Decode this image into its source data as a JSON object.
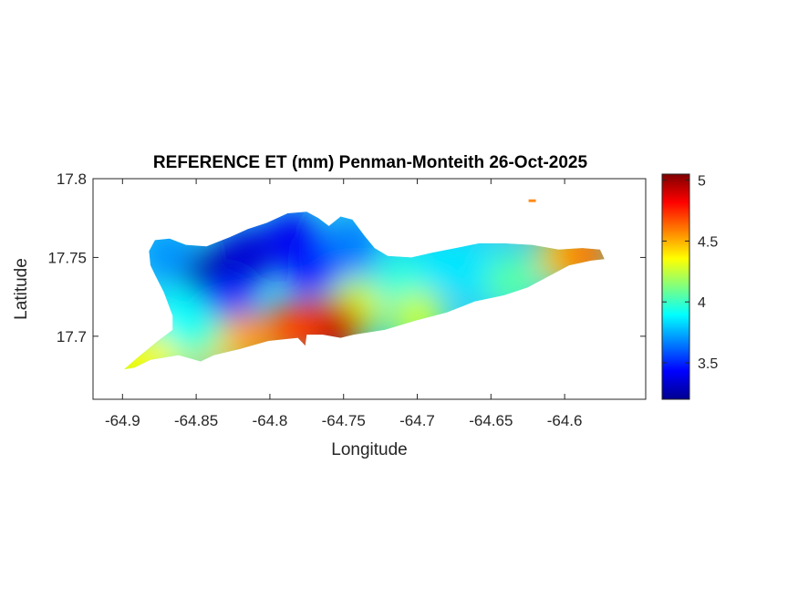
{
  "chart_data": {
    "type": "heatmap",
    "title": "REFERENCE ET (mm) Penman-Monteith 26-Oct-2025",
    "xlabel": "Longitude",
    "ylabel": "Latitude",
    "xlim": [
      -64.92,
      -64.545
    ],
    "ylim": [
      17.66,
      17.8
    ],
    "x_ticks": [
      -64.9,
      -64.85,
      -64.8,
      -64.75,
      -64.7,
      -64.65,
      -64.6
    ],
    "x_tick_labels": [
      "-64.9",
      "-64.85",
      "-64.8",
      "-64.75",
      "-64.7",
      "-64.65",
      "-64.6"
    ],
    "y_ticks": [
      17.7,
      17.75,
      17.8
    ],
    "y_tick_labels": [
      "17.7",
      "17.75",
      "17.8"
    ],
    "grid": false,
    "colorbar": {
      "colormap": "jet",
      "clim": [
        3.2,
        5.05
      ],
      "ticks": [
        3.5,
        4,
        4.5,
        5
      ],
      "tick_labels": [
        "3.5",
        "4",
        "4.5",
        "5"
      ]
    },
    "region_outline": [
      [
        -64.899,
        17.679
      ],
      [
        -64.889,
        17.687
      ],
      [
        -64.876,
        17.697
      ],
      [
        -64.866,
        17.704
      ],
      [
        -64.866,
        17.713
      ],
      [
        -64.872,
        17.728
      ],
      [
        -64.878,
        17.739
      ],
      [
        -64.881,
        17.745
      ],
      [
        -64.882,
        17.754
      ],
      [
        -64.878,
        17.761
      ],
      [
        -64.868,
        17.762
      ],
      [
        -64.857,
        17.758
      ],
      [
        -64.843,
        17.757
      ],
      [
        -64.827,
        17.763
      ],
      [
        -64.815,
        17.768
      ],
      [
        -64.802,
        17.772
      ],
      [
        -64.788,
        17.778
      ],
      [
        -64.775,
        17.779
      ],
      [
        -64.767,
        17.775
      ],
      [
        -64.76,
        17.77
      ],
      [
        -64.752,
        17.776
      ],
      [
        -64.744,
        17.774
      ],
      [
        -64.736,
        17.764
      ],
      [
        -64.729,
        17.756
      ],
      [
        -64.72,
        17.751
      ],
      [
        -64.704,
        17.75
      ],
      [
        -64.69,
        17.753
      ],
      [
        -64.674,
        17.756
      ],
      [
        -64.658,
        17.759
      ],
      [
        -64.641,
        17.759
      ],
      [
        -64.622,
        17.758
      ],
      [
        -64.604,
        17.755
      ],
      [
        -64.588,
        17.756
      ],
      [
        -64.576,
        17.755
      ],
      [
        -64.573,
        17.749
      ],
      [
        -64.582,
        17.748
      ],
      [
        -64.597,
        17.745
      ],
      [
        -64.611,
        17.738
      ],
      [
        -64.625,
        17.731
      ],
      [
        -64.641,
        17.726
      ],
      [
        -64.661,
        17.722
      ],
      [
        -64.68,
        17.715
      ],
      [
        -64.701,
        17.71
      ],
      [
        -64.722,
        17.704
      ],
      [
        -64.743,
        17.701
      ],
      [
        -64.752,
        17.699
      ],
      [
        -64.764,
        17.701
      ],
      [
        -64.775,
        17.701
      ],
      [
        -64.776,
        17.694
      ],
      [
        -64.781,
        17.699
      ],
      [
        -64.801,
        17.697
      ],
      [
        -64.82,
        17.692
      ],
      [
        -64.838,
        17.688
      ],
      [
        -64.847,
        17.684
      ],
      [
        -64.862,
        17.688
      ],
      [
        -64.881,
        17.685
      ],
      [
        -64.892,
        17.68
      ]
    ],
    "islets": [
      [
        -64.622,
        17.786
      ]
    ],
    "value_field": [
      {
        "lon": -64.84,
        "lat": 17.74,
        "et": 3.25
      },
      {
        "lon": -64.815,
        "lat": 17.752,
        "et": 3.35
      },
      {
        "lon": -64.785,
        "lat": 17.762,
        "et": 3.4
      },
      {
        "lon": -64.77,
        "lat": 17.745,
        "et": 3.45
      },
      {
        "lon": -64.83,
        "lat": 17.722,
        "et": 3.5
      },
      {
        "lon": -64.745,
        "lat": 17.758,
        "et": 3.65
      },
      {
        "lon": -64.87,
        "lat": 17.752,
        "et": 3.7
      },
      {
        "lon": -64.71,
        "lat": 17.735,
        "et": 3.95
      },
      {
        "lon": -64.68,
        "lat": 17.745,
        "et": 3.85
      },
      {
        "lon": -64.655,
        "lat": 17.74,
        "et": 3.85
      },
      {
        "lon": -64.635,
        "lat": 17.735,
        "et": 4.05
      },
      {
        "lon": -64.6,
        "lat": 17.75,
        "et": 4.45
      },
      {
        "lon": -64.585,
        "lat": 17.752,
        "et": 4.6
      },
      {
        "lon": -64.7,
        "lat": 17.712,
        "et": 4.25
      },
      {
        "lon": -64.742,
        "lat": 17.718,
        "et": 4.3
      },
      {
        "lon": -64.755,
        "lat": 17.705,
        "et": 4.95
      },
      {
        "lon": -64.768,
        "lat": 17.707,
        "et": 4.9
      },
      {
        "lon": -64.785,
        "lat": 17.704,
        "et": 4.7
      },
      {
        "lon": -64.815,
        "lat": 17.698,
        "et": 4.55
      },
      {
        "lon": -64.84,
        "lat": 17.693,
        "et": 4.45
      },
      {
        "lon": -64.87,
        "lat": 17.692,
        "et": 4.35
      },
      {
        "lon": -64.895,
        "lat": 17.681,
        "et": 4.35
      },
      {
        "lon": -64.85,
        "lat": 17.702,
        "et": 4.05
      },
      {
        "lon": -64.86,
        "lat": 17.712,
        "et": 3.9
      },
      {
        "lon": -64.622,
        "lat": 17.786,
        "et": 4.65
      }
    ]
  }
}
